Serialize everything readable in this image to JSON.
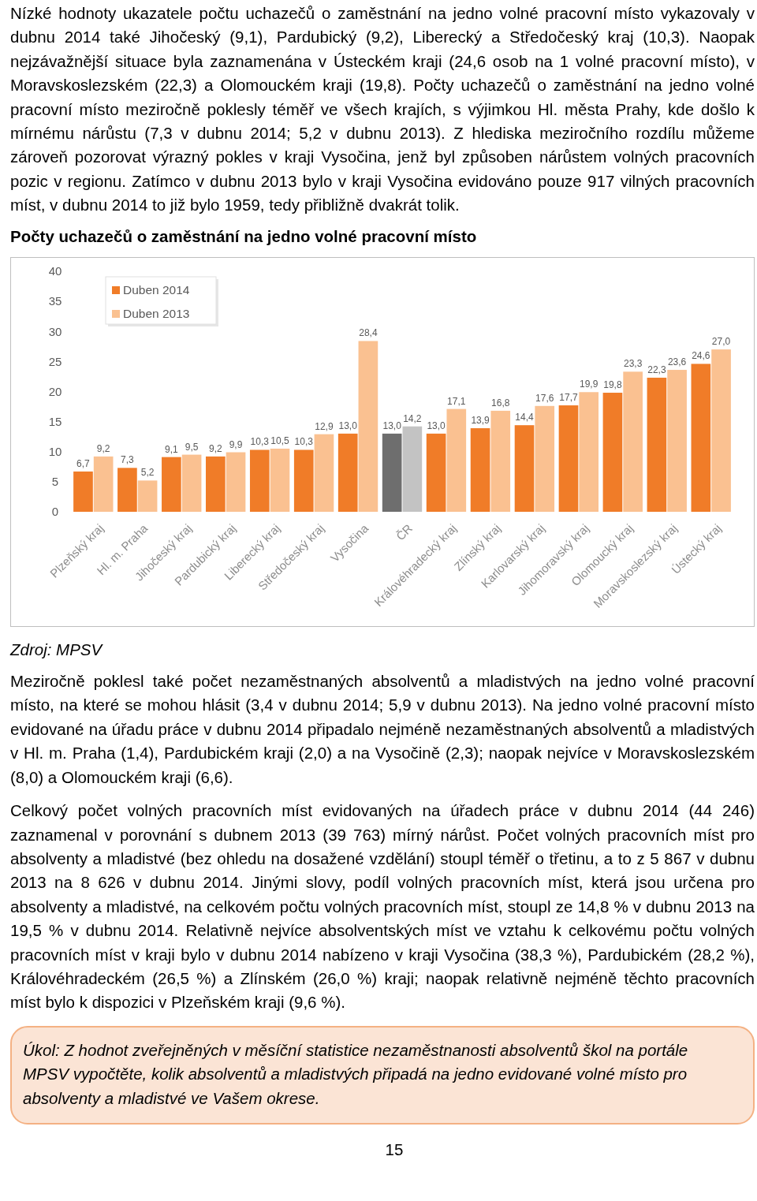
{
  "chart_data": {
    "type": "bar",
    "title": "Počty uchazečů o zaměstnání na jedno volné pracovní místo",
    "categories": [
      "Plzeňský kraj",
      "Hl. m. Praha",
      "Jihočeský kraj",
      "Pardubický kraj",
      "Liberecký kraj",
      "Středočeský kraj",
      "Vysočina",
      "ČR",
      "Královéhradecký kraj",
      "Zlínský kraj",
      "Karlovarský kraj",
      "Jihomoravský kraj",
      "Olomoucký kraj",
      "Moravskoslezský kraj",
      "Ústecký kraj"
    ],
    "series": [
      {
        "name": "Duben 2014",
        "color": "#f07c28",
        "colors": [
          "#f07c28",
          "#f07c28",
          "#f07c28",
          "#f07c28",
          "#f07c28",
          "#f07c28",
          "#f07c28",
          "#6e6e6e",
          "#f07c28",
          "#f07c28",
          "#f07c28",
          "#f07c28",
          "#f07c28",
          "#f07c28",
          "#f07c28"
        ],
        "values": [
          6.7,
          7.3,
          9.1,
          9.2,
          10.3,
          10.3,
          13.0,
          13.0,
          13.0,
          13.9,
          14.4,
          17.7,
          19.8,
          22.3,
          24.6
        ],
        "value_labels": [
          "6,7",
          "7,3",
          "9,1",
          "9,2",
          "10,3",
          "10,3",
          "13,0",
          "13,0",
          "13,0",
          "13,9",
          "14,4",
          "17,7",
          "19,8",
          "22,3",
          "24,6"
        ]
      },
      {
        "name": "Duben 2013",
        "color": "#fac191",
        "colors": [
          "#fac191",
          "#fac191",
          "#fac191",
          "#fac191",
          "#fac191",
          "#fac191",
          "#fac191",
          "#c3c3c3",
          "#fac191",
          "#fac191",
          "#fac191",
          "#fac191",
          "#fac191",
          "#fac191",
          "#fac191"
        ],
        "values": [
          9.2,
          5.2,
          9.5,
          9.9,
          10.5,
          12.9,
          28.4,
          14.2,
          17.1,
          16.8,
          17.6,
          19.9,
          23.3,
          23.6,
          27.0
        ],
        "value_labels": [
          "9,2",
          "5,2",
          "9,5",
          "9,9",
          "10,5",
          "12,9",
          "28,4",
          "14,2",
          "17,1",
          "16,8",
          "17,6",
          "19,9",
          "23,3",
          "23,6",
          "27,0"
        ]
      }
    ],
    "ylim": [
      0,
      40
    ],
    "yticks": [
      0,
      5,
      10,
      15,
      20,
      25,
      30,
      35,
      40
    ],
    "legend": "top left",
    "annotations": [
      "Nízké hodnoty ukazatele počtu uchazečů o zaměstnání na jedno volné pracovní místo vykazovaly v dubnu 2014 také Jihočeský (9,1), Pardubický (9,2), Liberecký a Středočeský kraj (10,3). Naopak nejzávažnější situace byla zaznamenána v Ústeckém kraji (24,6 osob na 1 volné pracovní místo), v Moravskoslezském (22,3) a Olomouckém kraji (19,8). Počty uchazečů o zaměstnání na jedno volné pracovní místo meziročně poklesly téměř ve všech krajích, s výjimkou Hl. města Prahy, kde došlo k mírnému nárůstu (7,3 v dubnu 2014; 5,2 v dubnu 2013). Z hlediska meziročního rozdílu můžeme zároveň pozorovat výrazný pokles v kraji Vysočina, jenž byl způsoben nárůstem volných pracovních pozic v regionu. Zatímco v dubnu 2013 bylo v kraji Vysočina evidováno pouze 917 vilných pracovních míst, v dubnu 2014 to již bylo 1959, tedy přibližně dvakrát tolik.",
      "Zdroj: MPSV",
      "Meziročně poklesl také počet nezaměstnaných absolventů a mladistvých na jedno volné pracovní místo, na které se mohou hlásit (3,4 v dubnu 2014; 5,9 v dubnu 2013). Na jedno volné pracovní místo evidované na úřadu práce v dubnu 2014 připadalo nejméně nezaměstnaných absolventů a mladistvých v Hl. m. Praha (1,4), Pardubickém kraji (2,0) a na Vysočině (2,3); naopak nejvíce v Moravskoslezském (8,0) a Olomouckém kraji (6,6).",
      "Celkový počet volných pracovních míst evidovaných na úřadech práce v dubnu 2014 (44 246) zaznamenal v porovnání s dubnem 2013 (39 763) mírný nárůst. Počet volných pracovních míst pro absolventy a mladistvé (bez ohledu na dosažené vzdělání) stoupl téměř o třetinu, a to z 5 867 v dubnu 2013 na 8 626 v dubnu 2014. Jinými slovy, podíl volných pracovních míst, která jsou určena pro absolventy a mladistvé, na celkovém počtu volných pracovních míst, stoupl ze 14,8 % v dubnu 2013 na 19,5 % v dubnu 2014. Relativně nejvíce absolventských míst ve vztahu k celkovému počtu volných pracovních míst v kraji bylo v dubnu 2014 nabízeno v kraji Vysočina (38,3 %), Pardubickém (28,2 %), Královéhradeckém (26,5 %) a Zlínském (26,0 %) kraji; naopak relativně nejméně těchto pracovních míst bylo k dispozici v Plzeňském kraji (9,6 %).",
      "Úkol: Z hodnot zveřejněných v měsíční statistice nezaměstnanosti absolventů škol na portále MPSV vypočtěte, kolik absolventů a mladistvých připadá na jedno evidované volné místo pro absolventy a mladistvé ve Vašem okrese.",
      "15"
    ]
  }
}
